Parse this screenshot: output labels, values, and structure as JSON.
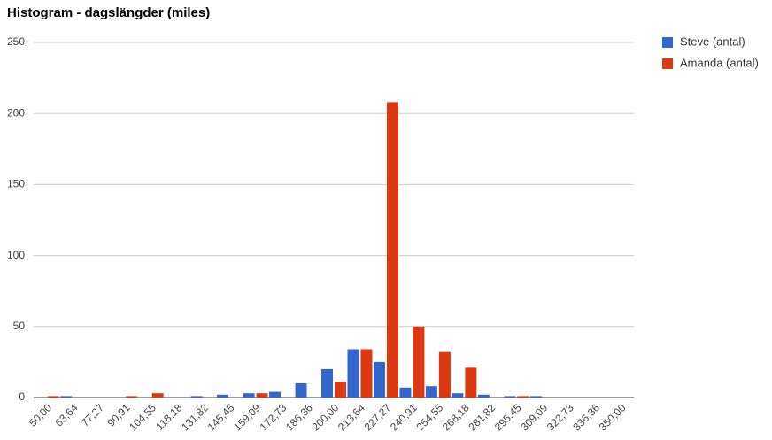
{
  "chart_data": {
    "type": "bar",
    "title": "Histogram - dagslängder (miles)",
    "categories": [
      "50,00",
      "63,64",
      "77,27",
      "90,91",
      "104,55",
      "118,18",
      "131,82",
      "145,45",
      "159,09",
      "172,73",
      "186,36",
      "200,00",
      "213,64",
      "227,27",
      "240,91",
      "254,55",
      "268,18",
      "281,82",
      "295,45",
      "309,09",
      "322,73",
      "336,36",
      "350,00"
    ],
    "series": [
      {
        "name": "Steve (antal)",
        "color": "#3366cc",
        "values": [
          0,
          1,
          0,
          0,
          0,
          0,
          1,
          2,
          3,
          4,
          10,
          20,
          34,
          25,
          7,
          8,
          3,
          2,
          1,
          1,
          0,
          0,
          0
        ]
      },
      {
        "name": "Amanda (antal)",
        "color": "#dc3912",
        "values": [
          1,
          0,
          0,
          1,
          3,
          0,
          0,
          0,
          3,
          0,
          0,
          11,
          34,
          208,
          50,
          32,
          21,
          0,
          1,
          0,
          0,
          0,
          0
        ]
      }
    ],
    "ylim": [
      0,
      250
    ],
    "yticks": [
      0,
      50,
      100,
      150,
      200,
      250
    ],
    "grid": true,
    "legend": "right"
  }
}
